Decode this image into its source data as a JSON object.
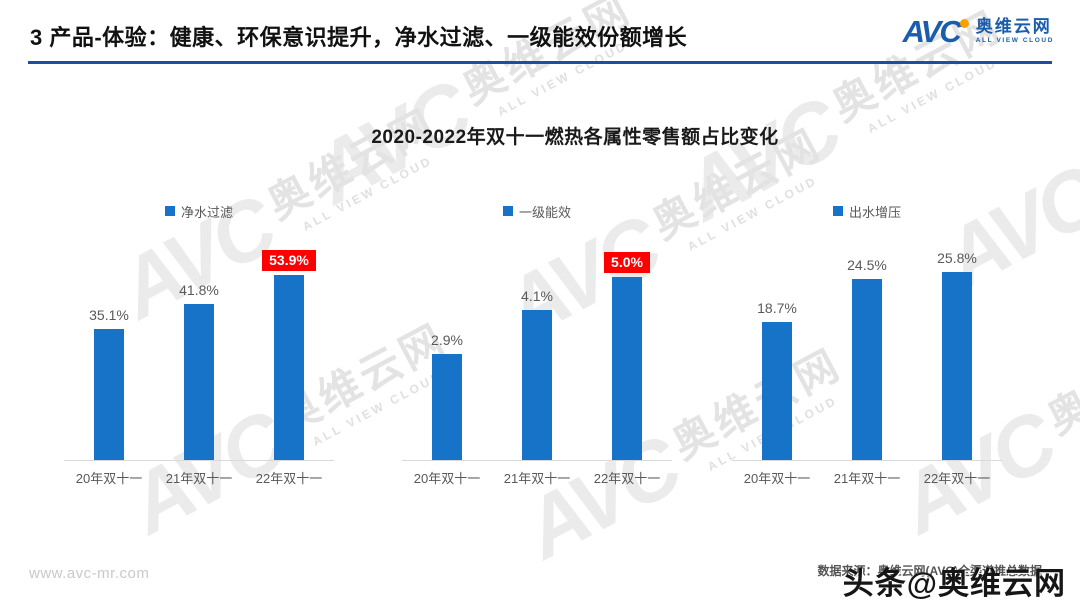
{
  "header": {
    "title": "3 产品-体验：健康、环保意识提升，净水过滤、一级能效份额增长",
    "logo": {
      "avc": "AVC",
      "name": "奥维云网",
      "subtitle": "ALL VIEW CLOUD"
    }
  },
  "chart_data": {
    "type": "bar",
    "title": "2020-2022年双十一燃热各属性零售额占比变化",
    "categories": [
      "20年双十一",
      "21年双十一",
      "22年双十一"
    ],
    "series": [
      {
        "name": "净水过滤",
        "values": [
          35.1,
          41.8,
          53.9
        ],
        "labels": [
          "35.1%",
          "41.8%",
          "53.9%"
        ],
        "highlight_index": 2
      },
      {
        "name": "一级能效",
        "values": [
          2.9,
          4.1,
          5.0
        ],
        "labels": [
          "2.9%",
          "4.1%",
          "5.0%"
        ],
        "highlight_index": 2
      },
      {
        "name": "出水增压",
        "values": [
          18.7,
          24.5,
          25.8
        ],
        "labels": [
          "18.7%",
          "24.5%",
          "25.8%"
        ],
        "highlight_index": -1
      }
    ],
    "legend_position": "top",
    "grid": false,
    "colors": {
      "bar": "#1673C8",
      "highlight_bg": "#FE0000",
      "highlight_text": "#FFFFFF",
      "axis_line": "#D9D9D9",
      "value_label": "#595959"
    }
  },
  "watermark": {
    "avc": "AVC",
    "name": "奥维云网",
    "subtitle": "ALL VIEW CLOUD"
  },
  "footer": {
    "site": "www.avc-mr.com",
    "source": "数据来源：奥维云网(AVC)全渠道推总数据",
    "overlay": "头条@奥维云网"
  }
}
